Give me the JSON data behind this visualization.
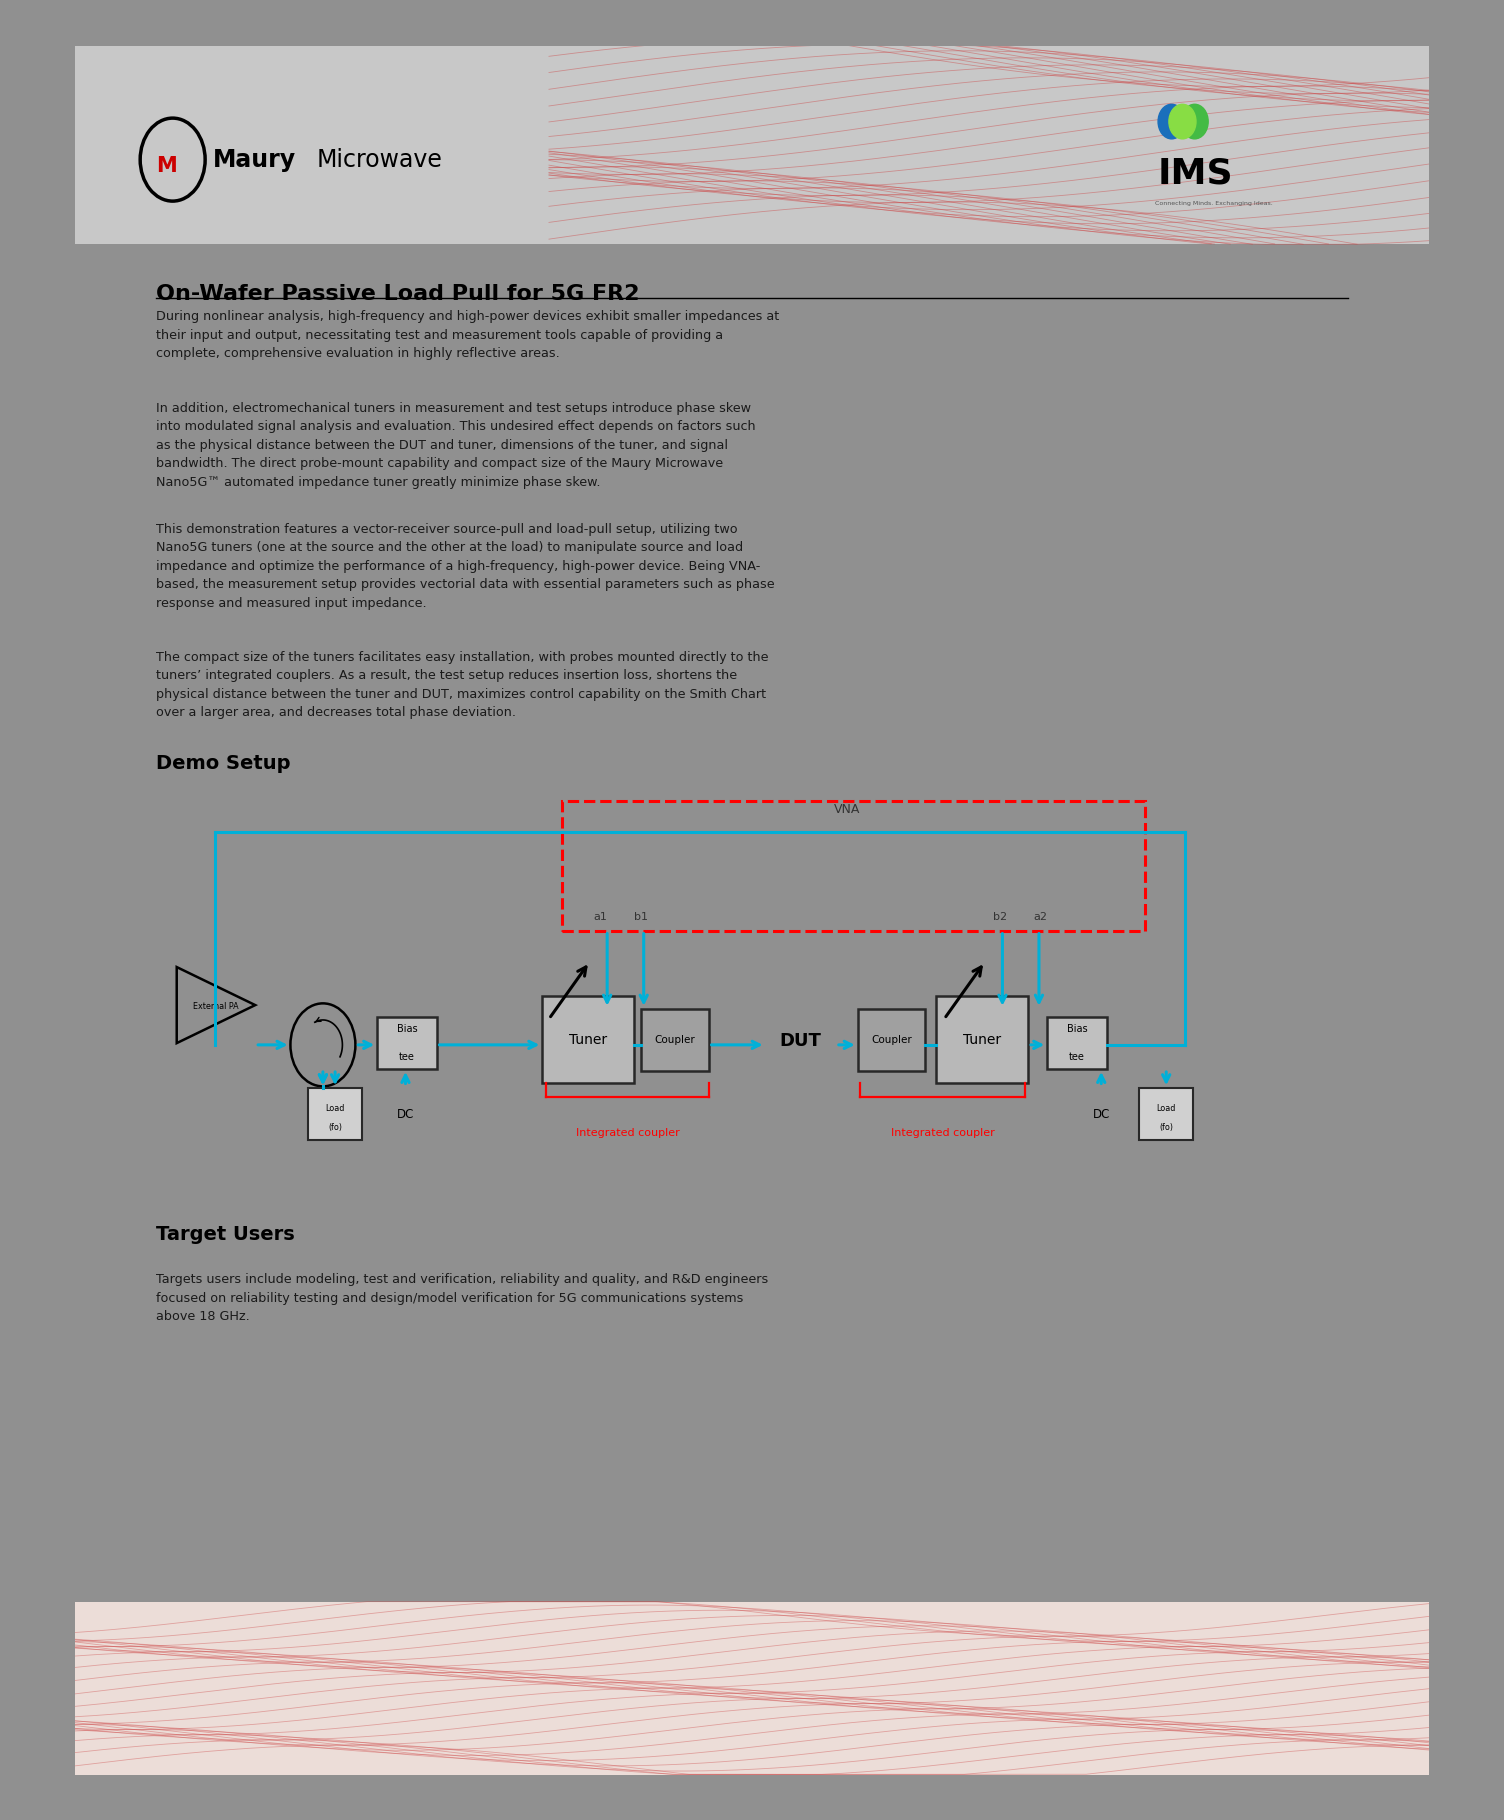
{
  "title": "On-Wafer Passive Load Pull for 5G FR2",
  "main_heading": "On-Wafer Passive Load Pull for 5G FR2",
  "para1": "During nonlinear analysis, high-frequency and high-power devices exhibit smaller impedances at\ntheir input and output, necessitating test and measurement tools capable of providing a\ncomplete, comprehensive evaluation in highly reflective areas.",
  "para2": "In addition, electromechanical tuners in measurement and test setups introduce phase skew\ninto modulated signal analysis and evaluation. This undesired effect depends on factors such\nas the physical distance between the DUT and tuner, dimensions of the tuner, and signal\nbandwidth. The direct probe-mount capability and compact size of the Maury Microwave\nNano5G™ automated impedance tuner greatly minimize phase skew.",
  "para3": "This demonstration features a vector-receiver source-pull and load-pull setup, utilizing two\nNano5G tuners (one at the source and the other at the load) to manipulate source and load\nimpedance and optimize the performance of a high-frequency, high-power device. Being VNA-\nbased, the measurement setup provides vectorial data with essential parameters such as phase\nresponse and measured input impedance.",
  "para4": "The compact size of the tuners facilitates easy installation, with probes mounted directly to the\ntuners’ integrated couplers. As a result, the test setup reduces insertion loss, shortens the\nphysical distance between the tuner and DUT, maximizes control capability on the Smith Chart\nover a larger area, and decreases total phase deviation.",
  "demo_setup_title": "Demo Setup",
  "target_users_title": "Target Users",
  "target_users_text": "Targets users include modeling, test and verification, reliability and quality, and R&D engineers\nfocused on reliability testing and design/model verification for 5G communications systems\nabove 18 GHz.",
  "bg_color": "#ffffff",
  "header_bg": "#d0d0d0",
  "text_color": "#1a1a1a",
  "cyan_color": "#00b0d8",
  "red_color": "#cc0000",
  "box_fill": "#c8c8c8",
  "box_dark": "#404040",
  "footer_wave_color": "#cc4444",
  "outer_bg": "#909090"
}
